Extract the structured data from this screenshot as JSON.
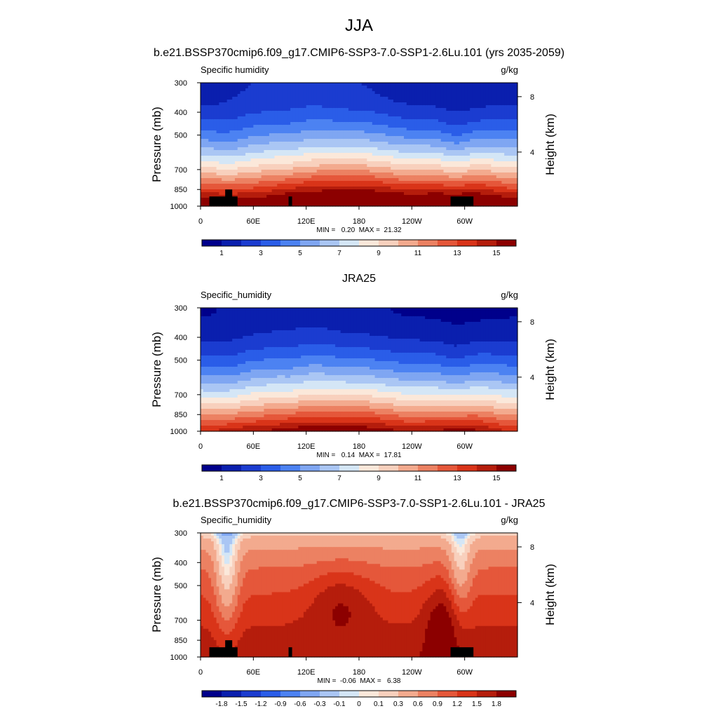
{
  "page": {
    "title": "JJA"
  },
  "colormaps": {
    "absolute": [
      "#00008b",
      "#0a1fae",
      "#1b3cd0",
      "#2a5de8",
      "#4c82f2",
      "#7fa6f2",
      "#aac6f4",
      "#d4e6f6",
      "#fbe8da",
      "#f8d0bd",
      "#f3aa8e",
      "#ec8162",
      "#e5573a",
      "#d93419",
      "#b51d0c",
      "#8c0000"
    ],
    "difference": [
      "#00008b",
      "#0a1fae",
      "#1b3cd0",
      "#2a5de8",
      "#4c82f2",
      "#7fa6f2",
      "#aac6f4",
      "#d4e6f6",
      "#fbe8da",
      "#f8d0bd",
      "#f3aa8e",
      "#ec8162",
      "#e5573a",
      "#d93419",
      "#b51d0c",
      "#8c0000"
    ]
  },
  "chart_data": [
    {
      "type": "heatmap",
      "title": "b.e21.BSSP370cmip6.f09_g17.CMIP6-SSP3-7.0-SSP1-2.6Lu.101 (yrs 2035-2059)",
      "left_label": "Specific humidity",
      "right_label": "g/kg",
      "ylabel": "Pressure (mb)",
      "ylabel_right": "Height (km)",
      "x_ticks": [
        "0",
        "60E",
        "120E",
        "180",
        "120W",
        "60W"
      ],
      "y_ticks": [
        "300",
        "400",
        "500",
        "700",
        "850",
        "1000"
      ],
      "height_ticks": [
        "8",
        "4"
      ],
      "stats": "MIN =   0.20  MAX =  21.32",
      "colorbar_labels": [
        "1",
        "3",
        "5",
        "7",
        "9",
        "11",
        "13",
        "15"
      ],
      "colormap": "absolute",
      "surface": [
        [
          10,
          42,
          910
        ],
        [
          28,
          36,
          850
        ],
        [
          100,
          104,
          910
        ],
        [
          284,
          310,
          910
        ]
      ],
      "humidity_low": [
        1.4,
        2.0,
        2.3,
        2.0,
        1.4,
        1.2
      ],
      "humidity_high": [
        17,
        17,
        18.5,
        19,
        18,
        18.5
      ]
    },
    {
      "type": "heatmap",
      "title": "JRA25",
      "left_label": "Specific_humidity",
      "right_label": "g/kg",
      "ylabel": "Pressure (mb)",
      "ylabel_right": "Height (km)",
      "x_ticks": [
        "0",
        "60E",
        "120E",
        "180",
        "120W",
        "60W"
      ],
      "y_ticks": [
        "300",
        "400",
        "500",
        "700",
        "850",
        "1000"
      ],
      "height_ticks": [
        "8",
        "4"
      ],
      "stats": "MIN =   0.14  MAX =  17.81",
      "colorbar_labels": [
        "1",
        "3",
        "5",
        "7",
        "9",
        "11",
        "13",
        "15"
      ],
      "colormap": "absolute",
      "surface": [],
      "humidity_low": [
        0.9,
        1.3,
        1.6,
        1.2,
        0.9,
        0.8
      ],
      "humidity_high": [
        14,
        15,
        16,
        16,
        15,
        15.5
      ]
    },
    {
      "type": "heatmap",
      "title": "b.e21.BSSP370cmip6.f09_g17.CMIP6-SSP3-7.0-SSP1-2.6Lu.101 - JRA25",
      "left_label": "Specific_humidity",
      "right_label": "g/kg",
      "ylabel": "Pressure (mb)",
      "ylabel_right": "Height (km)",
      "x_ticks": [
        "0",
        "60E",
        "120E",
        "180",
        "120W",
        "60W"
      ],
      "y_ticks": [
        "300",
        "400",
        "500",
        "700",
        "850",
        "1000"
      ],
      "height_ticks": [
        "8",
        "4"
      ],
      "stats": "MIN =  -0.06  MAX =   6.38",
      "colorbar_labels": [
        "-1.8",
        "-1.5",
        "-1.2",
        "-0.9",
        "-0.6",
        "-0.3",
        "-0.1",
        "0",
        "0.1",
        "0.3",
        "0.6",
        "0.9",
        "1.2",
        "1.5",
        "1.8"
      ],
      "colormap": "difference",
      "surface": [
        [
          10,
          42,
          910
        ],
        [
          28,
          36,
          850
        ],
        [
          100,
          104,
          910
        ],
        [
          284,
          310,
          910
        ]
      ]
    }
  ]
}
